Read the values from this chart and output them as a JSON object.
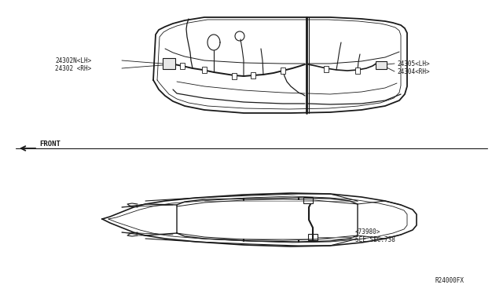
{
  "background_color": "#ffffff",
  "line_color": "#1a1a1a",
  "fig_width": 6.4,
  "fig_height": 3.72,
  "dpi": 100,
  "see_sec_text": "SEE SEC.738\n<73980>",
  "front_label": "FRONT",
  "label_24302": "24302 <RH>",
  "label_24302N": "24302N<LH>",
  "label_24304": "24304<RH>",
  "label_24305": "24305<LH>",
  "ref_code": "R24000FX"
}
